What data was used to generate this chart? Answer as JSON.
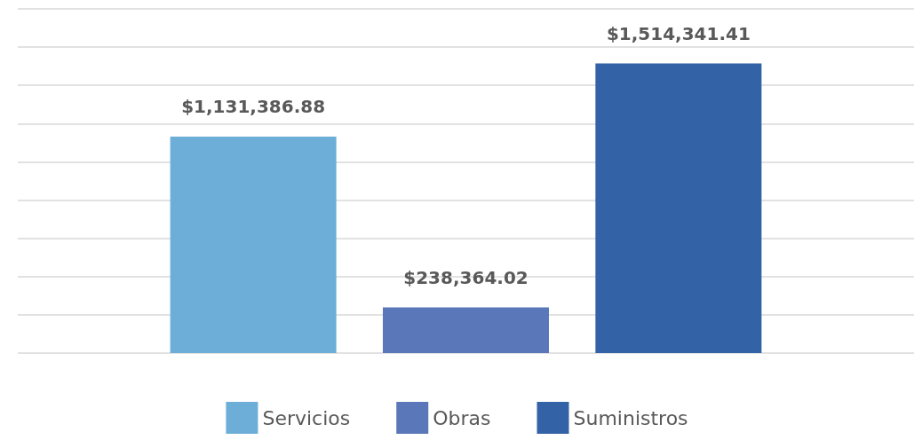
{
  "chart_data": {
    "type": "bar",
    "categories": [
      null
    ],
    "series": [
      {
        "name": "Servicios",
        "color": "#6caed8",
        "values": [
          1131386.88
        ],
        "value_labels": [
          "$1,131,386.88"
        ]
      },
      {
        "name": "Obras",
        "color": "#5a78b9",
        "values": [
          238364.02
        ],
        "value_labels": [
          "$238,364.02"
        ]
      },
      {
        "name": "Suministros",
        "color": "#3362a6",
        "values": [
          1514341.41
        ],
        "value_labels": [
          "$1,514,341.41"
        ]
      }
    ],
    "ylim": [
      0,
      1800000
    ],
    "yticks": [
      {
        "value": 0,
        "label": null
      },
      {
        "value": 200000,
        "label": null
      },
      {
        "value": 400000,
        "label": null
      },
      {
        "value": 600000,
        "label": null
      },
      {
        "value": 800000,
        "label": null
      },
      {
        "value": 1000000,
        "label": null
      },
      {
        "value": 1200000,
        "label": null
      },
      {
        "value": 1400000,
        "label": null
      },
      {
        "value": 1600000,
        "label": null
      },
      {
        "value": 1800000,
        "label": null
      }
    ],
    "grid": "y",
    "legend": "bottom"
  }
}
